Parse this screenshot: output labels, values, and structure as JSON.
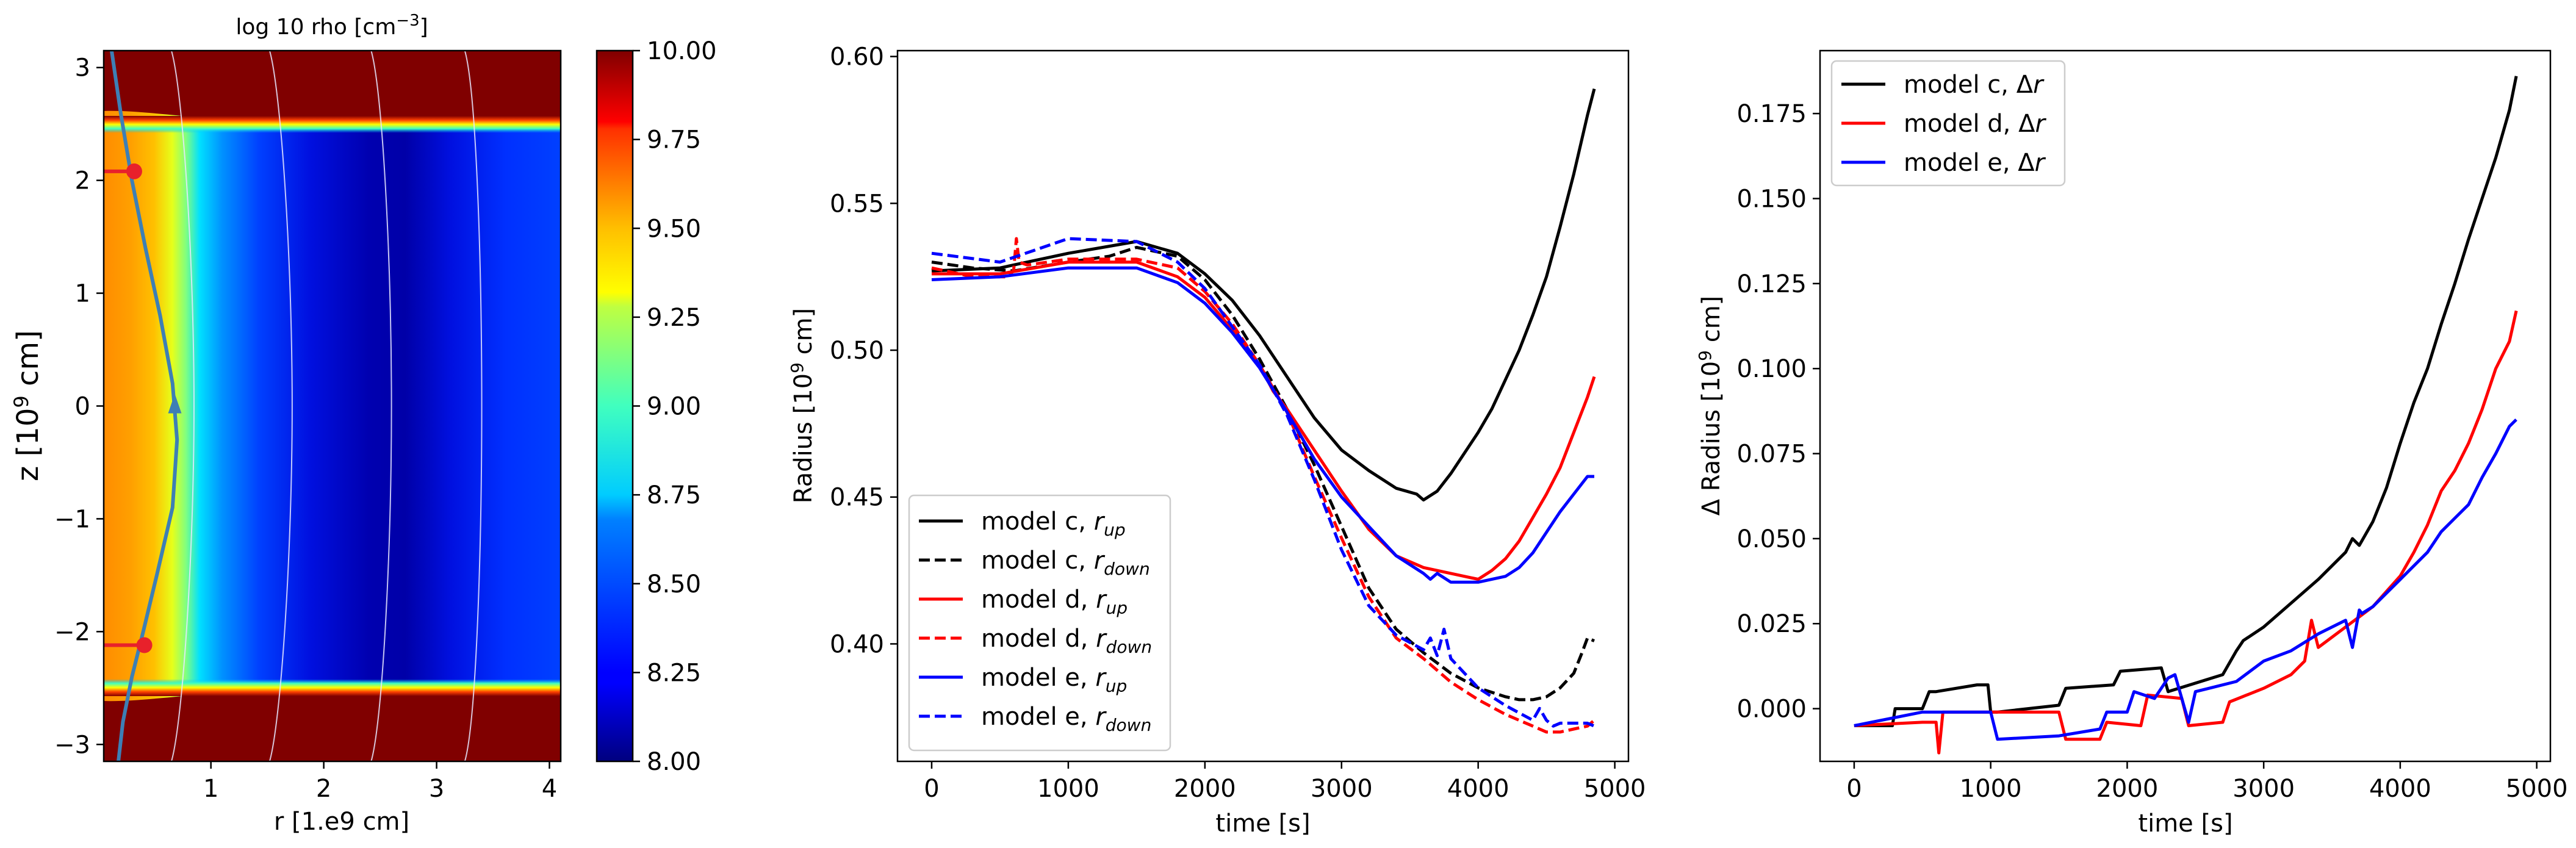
{
  "chart_data": [
    {
      "type": "heatmap",
      "title": "log 10 rho [cm$^{-3}$]",
      "title_text": "log 10 rho [cm",
      "title_sup": "−3",
      "title_end": "]",
      "xlabel": "r [1.e9 cm]",
      "ylabel": "z [10",
      "ylabel_sup": "9",
      "ylabel_end": " cm]",
      "xlim": [
        0.05,
        4.1
      ],
      "ylim": [
        -3.15,
        3.15
      ],
      "xticks": [
        1,
        2,
        3,
        4
      ],
      "xtick_labels": [
        "1",
        "2",
        "3",
        "4"
      ],
      "yticks": [
        -3,
        -2,
        -1,
        0,
        1,
        2,
        3
      ],
      "ytick_labels": [
        "−3",
        "−2",
        "−1",
        "0",
        "1",
        "2",
        "3"
      ],
      "colorbar": {
        "range": [
          8.0,
          10.0
        ],
        "ticks": [
          8.0,
          8.25,
          8.5,
          8.75,
          9.0,
          9.25,
          9.5,
          9.75,
          10.0
        ],
        "tick_labels": [
          "8.00",
          "8.25",
          "8.50",
          "8.75",
          "9.00",
          "9.25",
          "9.50",
          "9.75",
          "10.00"
        ],
        "colormap": "jet"
      },
      "disk_half_height": 2.55,
      "contour_levels_r_at_midplane": [
        0.85,
        1.72,
        2.6,
        3.4
      ],
      "contour_levels_r_at_edge": [
        0.75,
        1.62,
        2.52,
        3.35
      ],
      "trajectory": {
        "r": [
          0.12,
          0.2,
          0.3,
          0.42,
          0.55,
          0.66,
          0.7,
          0.66,
          0.52,
          0.4,
          0.3,
          0.22,
          0.18
        ],
        "z": [
          3.15,
          2.6,
          2.0,
          1.4,
          0.8,
          0.2,
          -0.3,
          -0.9,
          -1.5,
          -2.0,
          -2.4,
          -2.8,
          -3.15
        ],
        "arrow_at": [
          0.68,
          0.0
        ],
        "color": "#3d7fb5"
      },
      "markers": [
        {
          "r": 0.32,
          "z": 2.08,
          "color": "#e8212b"
        },
        {
          "r": 0.41,
          "z": -2.12,
          "color": "#e8212b"
        }
      ]
    },
    {
      "type": "line",
      "title": "",
      "xlabel": "time [s]",
      "ylabel": "Radius [10",
      "ylabel_sup": "9",
      "ylabel_end": " cm]",
      "xlim": [
        -250,
        5100
      ],
      "ylim": [
        0.36,
        0.602
      ],
      "xticks": [
        0,
        1000,
        2000,
        3000,
        4000,
        5000
      ],
      "xtick_labels": [
        "0",
        "1000",
        "2000",
        "3000",
        "4000",
        "5000"
      ],
      "yticks": [
        0.4,
        0.45,
        0.5,
        0.55,
        0.6
      ],
      "ytick_labels": [
        "0.40",
        "0.45",
        "0.50",
        "0.55",
        "0.60"
      ],
      "legend_position": "lower-left",
      "series": [
        {
          "name": "model c, r",
          "sub": "up",
          "color": "#000000",
          "dash": false,
          "x": [
            0,
            500,
            1000,
            1500,
            1800,
            2000,
            2200,
            2400,
            2600,
            2800,
            3000,
            3200,
            3400,
            3550,
            3600,
            3700,
            3800,
            3900,
            4000,
            4100,
            4200,
            4300,
            4400,
            4500,
            4600,
            4700,
            4800,
            4850
          ],
          "y": [
            0.527,
            0.528,
            0.533,
            0.537,
            0.533,
            0.526,
            0.517,
            0.505,
            0.491,
            0.477,
            0.466,
            0.459,
            0.453,
            0.451,
            0.449,
            0.452,
            0.458,
            0.465,
            0.472,
            0.48,
            0.49,
            0.5,
            0.512,
            0.525,
            0.542,
            0.56,
            0.58,
            0.589
          ]
        },
        {
          "name": "model c, r",
          "sub": "down",
          "color": "#000000",
          "dash": true,
          "x": [
            0,
            300,
            600,
            1000,
            1300,
            1500,
            1800,
            2000,
            2200,
            2400,
            2600,
            2800,
            3000,
            3200,
            3400,
            3500,
            3600,
            3800,
            4000,
            4200,
            4300,
            4400,
            4500,
            4600,
            4700,
            4760,
            4800,
            4850
          ],
          "y": [
            0.53,
            0.528,
            0.527,
            0.53,
            0.532,
            0.535,
            0.532,
            0.524,
            0.512,
            0.497,
            0.48,
            0.461,
            0.44,
            0.419,
            0.405,
            0.401,
            0.397,
            0.39,
            0.385,
            0.382,
            0.381,
            0.381,
            0.382,
            0.385,
            0.39,
            0.397,
            0.402,
            0.401
          ]
        },
        {
          "name": "model d, r",
          "sub": "up",
          "color": "#ff0000",
          "dash": false,
          "x": [
            0,
            500,
            1000,
            1500,
            1800,
            2000,
            2200,
            2400,
            2500,
            2600,
            2800,
            3000,
            3200,
            3400,
            3600,
            3800,
            4000,
            4100,
            4200,
            4300,
            4400,
            4500,
            4600,
            4700,
            4800,
            4850
          ],
          "y": [
            0.526,
            0.526,
            0.53,
            0.53,
            0.525,
            0.518,
            0.507,
            0.495,
            0.486,
            0.48,
            0.466,
            0.452,
            0.439,
            0.43,
            0.426,
            0.424,
            0.422,
            0.425,
            0.429,
            0.435,
            0.443,
            0.451,
            0.46,
            0.472,
            0.484,
            0.491
          ]
        },
        {
          "name": "model d, r",
          "sub": "down",
          "color": "#ff0000",
          "dash": true,
          "x": [
            0,
            300,
            550,
            600,
            620,
            640,
            700,
            1000,
            1500,
            1800,
            2000,
            2200,
            2400,
            2600,
            2800,
            3000,
            3200,
            3400,
            3600,
            3800,
            4000,
            4200,
            4400,
            4500,
            4600,
            4700,
            4800,
            4850
          ],
          "y": [
            0.528,
            0.525,
            0.525,
            0.527,
            0.538,
            0.53,
            0.529,
            0.531,
            0.531,
            0.528,
            0.52,
            0.509,
            0.495,
            0.479,
            0.457,
            0.436,
            0.416,
            0.402,
            0.395,
            0.387,
            0.381,
            0.376,
            0.372,
            0.37,
            0.37,
            0.371,
            0.372,
            0.374
          ]
        },
        {
          "name": "model e, r",
          "sub": "up",
          "color": "#0000ff",
          "dash": false,
          "x": [
            0,
            500,
            1000,
            1500,
            1800,
            2000,
            2200,
            2400,
            2600,
            2800,
            3000,
            3200,
            3400,
            3600,
            3650,
            3700,
            3800,
            4000,
            4200,
            4300,
            4400,
            4500,
            4600,
            4700,
            4800,
            4850
          ],
          "y": [
            0.524,
            0.525,
            0.528,
            0.528,
            0.523,
            0.516,
            0.506,
            0.494,
            0.479,
            0.463,
            0.45,
            0.44,
            0.43,
            0.424,
            0.422,
            0.424,
            0.421,
            0.421,
            0.423,
            0.426,
            0.431,
            0.438,
            0.445,
            0.451,
            0.457,
            0.457
          ]
        },
        {
          "name": "model e, r",
          "sub": "down",
          "color": "#0000ff",
          "dash": true,
          "x": [
            0,
            500,
            1000,
            1500,
            1800,
            2000,
            2200,
            2400,
            2600,
            2800,
            3000,
            3200,
            3400,
            3600,
            3650,
            3700,
            3750,
            3800,
            4000,
            4200,
            4400,
            4450,
            4500,
            4550,
            4600,
            4800,
            4850
          ],
          "y": [
            0.533,
            0.53,
            0.538,
            0.537,
            0.53,
            0.521,
            0.508,
            0.495,
            0.478,
            0.456,
            0.432,
            0.413,
            0.403,
            0.398,
            0.402,
            0.396,
            0.405,
            0.395,
            0.385,
            0.379,
            0.374,
            0.378,
            0.374,
            0.372,
            0.373,
            0.373,
            0.372
          ]
        }
      ]
    },
    {
      "type": "line",
      "title": "",
      "xlabel": "time [s]",
      "ylabel": "Δ Radius [10",
      "ylabel_sup": "9",
      "ylabel_end": " cm]",
      "xlim": [
        -250,
        5100
      ],
      "ylim": [
        -0.0155,
        0.1935
      ],
      "xticks": [
        0,
        1000,
        2000,
        3000,
        4000,
        5000
      ],
      "xtick_labels": [
        "0",
        "1000",
        "2000",
        "3000",
        "4000",
        "5000"
      ],
      "yticks": [
        0.0,
        0.025,
        0.05,
        0.075,
        0.1,
        0.125,
        0.15,
        0.175
      ],
      "ytick_labels": [
        "0.000",
        "0.025",
        "0.050",
        "0.075",
        "0.100",
        "0.125",
        "0.150",
        "0.175"
      ],
      "legend_position": "top-left",
      "series": [
        {
          "name": "model c, Δ",
          "italic": "r",
          "color": "#000000",
          "x": [
            0,
            280,
            300,
            350,
            500,
            550,
            600,
            900,
            980,
            1000,
            1050,
            1500,
            1550,
            1900,
            1950,
            2250,
            2300,
            2700,
            2800,
            2850,
            3000,
            3200,
            3400,
            3600,
            3650,
            3700,
            3800,
            3900,
            4000,
            4100,
            4200,
            4300,
            4400,
            4500,
            4600,
            4700,
            4800,
            4850
          ],
          "y": [
            -0.005,
            -0.005,
            0.0,
            0.0,
            0.0,
            0.005,
            0.005,
            0.007,
            0.007,
            -0.001,
            -0.001,
            0.001,
            0.006,
            0.007,
            0.011,
            0.012,
            0.005,
            0.01,
            0.017,
            0.02,
            0.024,
            0.031,
            0.038,
            0.046,
            0.05,
            0.048,
            0.055,
            0.065,
            0.078,
            0.09,
            0.1,
            0.113,
            0.125,
            0.138,
            0.15,
            0.162,
            0.176,
            0.186
          ]
        },
        {
          "name": "model d, Δ",
          "italic": "r",
          "color": "#ff0000",
          "x": [
            0,
            500,
            600,
            620,
            650,
            700,
            1000,
            1500,
            1550,
            1800,
            1850,
            2100,
            2150,
            2400,
            2450,
            2700,
            2750,
            3000,
            3200,
            3300,
            3350,
            3400,
            3600,
            3800,
            4000,
            4100,
            4200,
            4300,
            4400,
            4500,
            4600,
            4700,
            4800,
            4850
          ],
          "y": [
            -0.005,
            -0.004,
            -0.004,
            -0.013,
            -0.001,
            -0.001,
            -0.001,
            -0.001,
            -0.009,
            -0.009,
            -0.004,
            -0.005,
            0.004,
            0.003,
            -0.005,
            -0.004,
            0.002,
            0.006,
            0.01,
            0.014,
            0.026,
            0.018,
            0.024,
            0.03,
            0.039,
            0.046,
            0.054,
            0.064,
            0.07,
            0.078,
            0.088,
            0.1,
            0.108,
            0.117
          ]
        },
        {
          "name": "model e, Δ",
          "italic": "r",
          "color": "#0000ff",
          "x": [
            0,
            500,
            1000,
            1050,
            1500,
            1800,
            1850,
            2000,
            2050,
            2200,
            2300,
            2350,
            2450,
            2500,
            2600,
            2800,
            3000,
            3200,
            3400,
            3600,
            3650,
            3700,
            3720,
            3800,
            4000,
            4200,
            4300,
            4400,
            4500,
            4600,
            4700,
            4800,
            4850
          ],
          "y": [
            -0.005,
            -0.001,
            -0.001,
            -0.009,
            -0.008,
            -0.006,
            -0.001,
            -0.001,
            0.005,
            0.003,
            0.009,
            0.01,
            -0.004,
            0.005,
            0.006,
            0.008,
            0.014,
            0.017,
            0.022,
            0.026,
            0.018,
            0.029,
            0.028,
            0.03,
            0.038,
            0.046,
            0.052,
            0.056,
            0.06,
            0.068,
            0.075,
            0.083,
            0.085
          ]
        }
      ]
    }
  ]
}
